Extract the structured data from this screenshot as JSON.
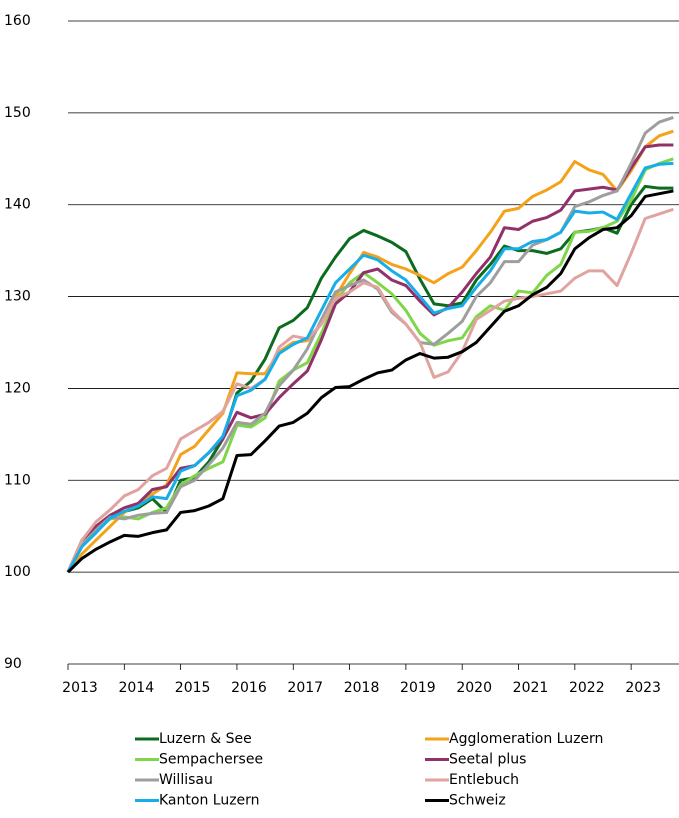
{
  "chart_data": {
    "type": "line",
    "x": [
      2013,
      2013.25,
      2013.5,
      2013.75,
      2014,
      2014.25,
      2014.5,
      2014.75,
      2015,
      2015.25,
      2015.5,
      2015.75,
      2016,
      2016.25,
      2016.5,
      2016.75,
      2017,
      2017.25,
      2017.5,
      2017.75,
      2018,
      2018.25,
      2018.5,
      2018.75,
      2019,
      2019.25,
      2019.5,
      2019.75,
      2020,
      2020.25,
      2020.5,
      2020.75,
      2021,
      2021.25,
      2021.5,
      2021.75,
      2022,
      2022.25,
      2022.5,
      2022.75,
      2023,
      2023.25,
      2023.5,
      2023.75
    ],
    "xlim": [
      2013,
      2023.85
    ],
    "xticks": [
      2013,
      2014,
      2015,
      2016,
      2017,
      2018,
      2019,
      2020,
      2021,
      2022,
      2023
    ],
    "ylim": [
      90,
      160
    ],
    "yticks": [
      90,
      100,
      110,
      120,
      130,
      140,
      150,
      160
    ],
    "grid": true,
    "series": [
      {
        "name": "Luzern & See",
        "color": "#0b6b1f",
        "values": [
          100,
          103,
          104.8,
          106,
          106.6,
          107,
          108,
          106.5,
          110,
          110.3,
          112,
          114.5,
          119.5,
          120.8,
          123.2,
          126.6,
          127.4,
          128.8,
          132,
          134.3,
          136.3,
          137.2,
          136.6,
          135.9,
          134.9,
          131.9,
          129.2,
          129,
          129.3,
          131.8,
          133.5,
          135.5,
          135,
          135,
          134.7,
          135.2,
          137,
          137.2,
          137.5,
          136.9,
          140,
          142,
          141.8,
          141.8
        ]
      },
      {
        "name": "Agglomeration Luzern",
        "color": "#f5a21b",
        "values": [
          100,
          102,
          103.5,
          105,
          106.5,
          107.5,
          108.5,
          109.5,
          112.8,
          113.7,
          115.5,
          117.3,
          121.7,
          121.6,
          121.6,
          124,
          125,
          125.2,
          127,
          130,
          132.5,
          134.8,
          134.3,
          133.5,
          133,
          132.3,
          131.5,
          132.5,
          133.2,
          135,
          137,
          139.3,
          139.6,
          140.9,
          141.6,
          142.5,
          144.7,
          143.8,
          143.3,
          141.5,
          143.7,
          146.3,
          147.5,
          148
        ]
      },
      {
        "name": "Sempachersee",
        "color": "#7fd64a",
        "values": [
          100,
          103,
          104.5,
          105.8,
          106,
          105.8,
          106.5,
          107,
          109.5,
          110.5,
          111.3,
          112,
          116,
          115.8,
          116.8,
          120.8,
          122,
          122.8,
          126,
          129.5,
          131.5,
          132.6,
          131.5,
          130.3,
          128.5,
          126,
          124.7,
          125.2,
          125.5,
          127.8,
          129,
          128.5,
          130.6,
          130.4,
          132.3,
          133.5,
          137,
          137.1,
          137.5,
          138.2,
          140.5,
          143.8,
          144.5,
          145
        ]
      },
      {
        "name": "Seetal plus",
        "color": "#92306a",
        "values": [
          100,
          103.5,
          105,
          106.2,
          107,
          107.5,
          109,
          109.3,
          111.3,
          111.6,
          113,
          114.5,
          117.4,
          116.8,
          117.2,
          119,
          120.5,
          121.9,
          125.3,
          129.2,
          130.5,
          132.6,
          133,
          131.8,
          131.2,
          129.5,
          128,
          128.8,
          130.5,
          132.5,
          134.3,
          137.5,
          137.3,
          138.2,
          138.6,
          139.4,
          141.5,
          141.7,
          141.9,
          141.6,
          144,
          146.3,
          146.5,
          146.5
        ]
      },
      {
        "name": "Willisau",
        "color": "#9e9e9e",
        "values": [
          100,
          103,
          104.6,
          106,
          105.8,
          106.2,
          106.4,
          106.5,
          109.3,
          110,
          111.7,
          113.5,
          116.3,
          116.1,
          117.3,
          120.3,
          122,
          124.3,
          127.5,
          130.5,
          131.2,
          131.8,
          130.8,
          128.3,
          127,
          125,
          124.8,
          126,
          127.3,
          130,
          131.5,
          133.8,
          133.8,
          135.6,
          136.2,
          137,
          139.8,
          140.3,
          141,
          141.5,
          144.5,
          147.8,
          149,
          149.5
        ]
      },
      {
        "name": "Entlebuch",
        "color": "#e0a3a0",
        "values": [
          100,
          103.5,
          105.5,
          106.8,
          108.3,
          109,
          110.5,
          111.3,
          114.5,
          115.4,
          116.3,
          117.5,
          120.5,
          120,
          121,
          124.5,
          125.7,
          125.4,
          127,
          129.8,
          130.5,
          131.5,
          131,
          128.5,
          127,
          125,
          121.2,
          121.8,
          124,
          127.5,
          128.5,
          129.5,
          129.8,
          130,
          130.3,
          130.6,
          132,
          132.8,
          132.8,
          131.2,
          134.7,
          138.5,
          139,
          139.5
        ]
      },
      {
        "name": "Kanton Luzern",
        "color": "#17aee8",
        "values": [
          100,
          102.8,
          104.3,
          105.9,
          106.6,
          107.2,
          108.2,
          108,
          111,
          111.6,
          113,
          114.8,
          119.2,
          119.8,
          121,
          123.8,
          124.8,
          125.5,
          128.5,
          131.5,
          133,
          134.5,
          134,
          132.8,
          131.8,
          130,
          128.2,
          128.7,
          129,
          131,
          132.8,
          135.2,
          135.2,
          136,
          136.2,
          137,
          139.3,
          139.1,
          139.2,
          138.4,
          141.2,
          144,
          144.4,
          144.5
        ]
      },
      {
        "name": "Schweiz",
        "color": "#000000",
        "values": [
          100,
          101.5,
          102.5,
          103.3,
          104,
          103.9,
          104.3,
          104.6,
          106.5,
          106.7,
          107.2,
          108,
          112.7,
          112.8,
          114.3,
          115.9,
          116.3,
          117.3,
          119,
          120.1,
          120.2,
          121,
          121.7,
          122,
          123.1,
          123.8,
          123.3,
          123.4,
          124,
          125,
          126.7,
          128.4,
          129,
          130.2,
          131,
          132.5,
          135.2,
          136.4,
          137.3,
          137.5,
          138.8,
          140.9,
          141.2,
          141.5
        ]
      }
    ]
  }
}
